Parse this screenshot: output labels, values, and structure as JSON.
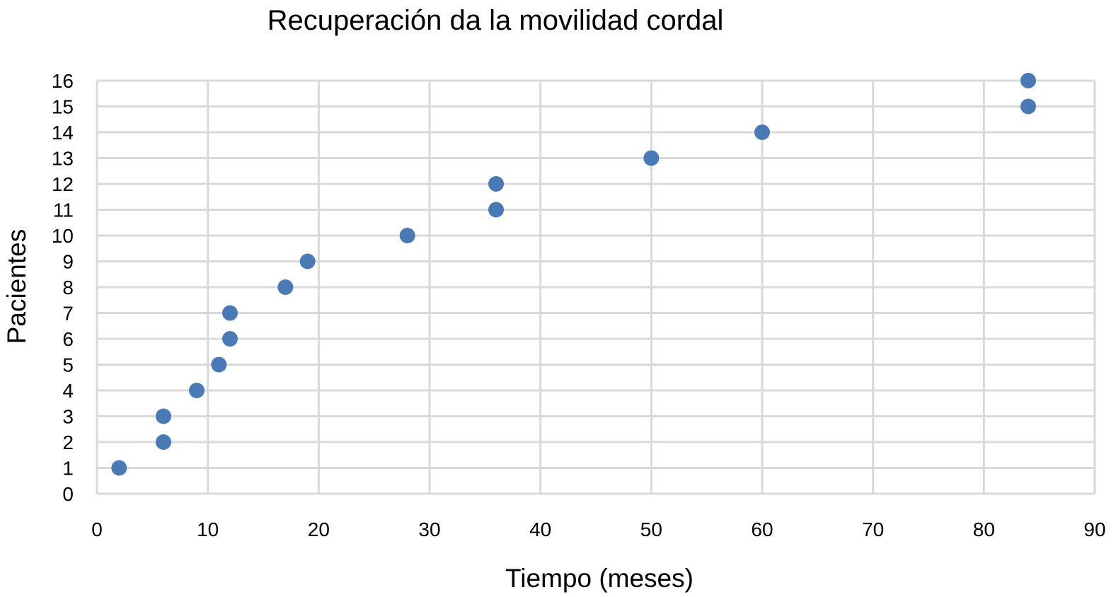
{
  "chart_data": {
    "type": "scatter",
    "title": "Recuperación da la movilidad cordal",
    "xlabel": "Tiempo (meses)",
    "ylabel": "Pacientes",
    "xlim": [
      0,
      90
    ],
    "ylim": [
      0,
      16
    ],
    "xticks": [
      "0",
      "10",
      "20",
      "30",
      "40",
      "50",
      "60",
      "70",
      "80",
      "90"
    ],
    "yticks": [
      "0",
      "1",
      "2",
      "3",
      "4",
      "5",
      "6",
      "7",
      "8",
      "9",
      "10",
      "11",
      "12",
      "13",
      "14",
      "15",
      "16"
    ],
    "grid": true,
    "legend": "none",
    "colors": {
      "marker": "#4a7ab5",
      "grid": "#d9d9d9"
    },
    "series": [
      {
        "x": [
          2,
          6,
          6,
          9,
          11,
          12,
          12,
          17,
          19,
          28,
          36,
          36,
          50,
          60,
          84,
          84
        ],
        "y": [
          1,
          2,
          3,
          4,
          5,
          6,
          7,
          8,
          9,
          10,
          11,
          12,
          13,
          14,
          15,
          16
        ]
      }
    ]
  }
}
